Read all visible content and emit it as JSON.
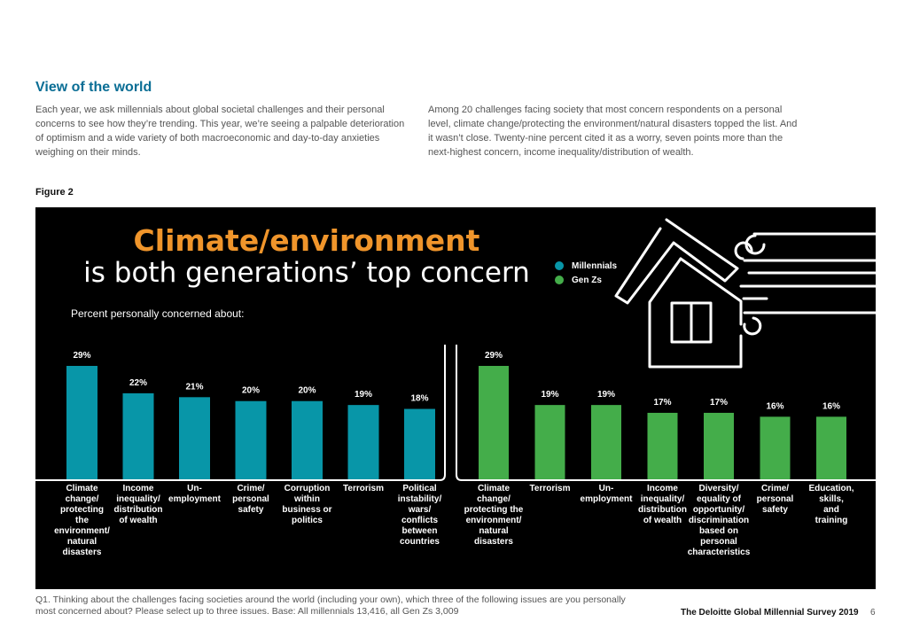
{
  "section": {
    "title": "View of the world",
    "paragraph_left": "Each year, we ask millennials about global societal challenges and their personal concerns to see how they’re trending. This year, we’re seeing a palpable deterioration of optimism and a wide variety of both macroeconomic and day-to-day anxieties weighing on their minds.",
    "paragraph_right": "Among 20 challenges facing society that most concern respondents on a personal level, climate change/protecting the environment/natural disasters topped the list. And it wasn’t close. Twenty-nine percent cited it as a worry, seven points more than the next-highest concern, income inequality/distribution of wealth."
  },
  "figure_label": "Figure 2",
  "footnote": "Q1. Thinking about the challenges facing societies around the world (including your own), which three of the following issues are you personally most concerned about? Please select up to three issues. Base: All millennials 13,416, all Gen Zs 3,009",
  "footer": {
    "title": "The Deloitte Global Millennial Survey 2019",
    "page": "6"
  },
  "colors": {
    "millennials": "#0896a8",
    "genz": "#44ad4a",
    "headline_accent": "#f0952b",
    "section_title": "#0a6e95"
  },
  "chart_data": {
    "type": "bar",
    "title": "Climate/environment",
    "subtitle": "is both generations’ top concern",
    "ylabel": "Percent personally concerned about:",
    "xlabel": "",
    "ylim": [
      0,
      30
    ],
    "grid": false,
    "legend": {
      "placement": "top-center",
      "entries": [
        "Millennials",
        "Gen Zs"
      ]
    },
    "series": [
      {
        "name": "Millennials",
        "color": "#0896a8",
        "categories": [
          "Climate\nchange/\nprotecting\nthe\nenvironment/\nnatural\ndisasters",
          "Income\ninequality/\ndistribution\nof wealth",
          "Un-\nemployment",
          "Crime/\npersonal\nsafety",
          "Corruption\nwithin\nbusiness or\npolitics",
          "Terrorism",
          "Political\ninstability/\nwars/\nconflicts\nbetween\ncountries"
        ],
        "values": [
          29,
          22,
          21,
          20,
          20,
          19,
          18
        ],
        "labels": [
          "29%",
          "22%",
          "21%",
          "20%",
          "20%",
          "19%",
          "18%"
        ]
      },
      {
        "name": "Gen Zs",
        "color": "#44ad4a",
        "categories": [
          "Climate\nchange/\nprotecting the\nenvironment/\nnatural\ndisasters",
          "Terrorism",
          "Un-\nemployment",
          "Income\ninequality/\ndistribution\nof wealth",
          "Diversity/\nequality of\nopportunity/\ndiscrimination\nbased on\npersonal\ncharacteristics",
          "Crime/\npersonal\nsafety",
          "Education,\nskills,\nand\ntraining"
        ],
        "values": [
          29,
          19,
          19,
          17,
          17,
          16,
          16
        ],
        "labels": [
          "29%",
          "19%",
          "19%",
          "17%",
          "17%",
          "16%",
          "16%"
        ]
      }
    ]
  }
}
